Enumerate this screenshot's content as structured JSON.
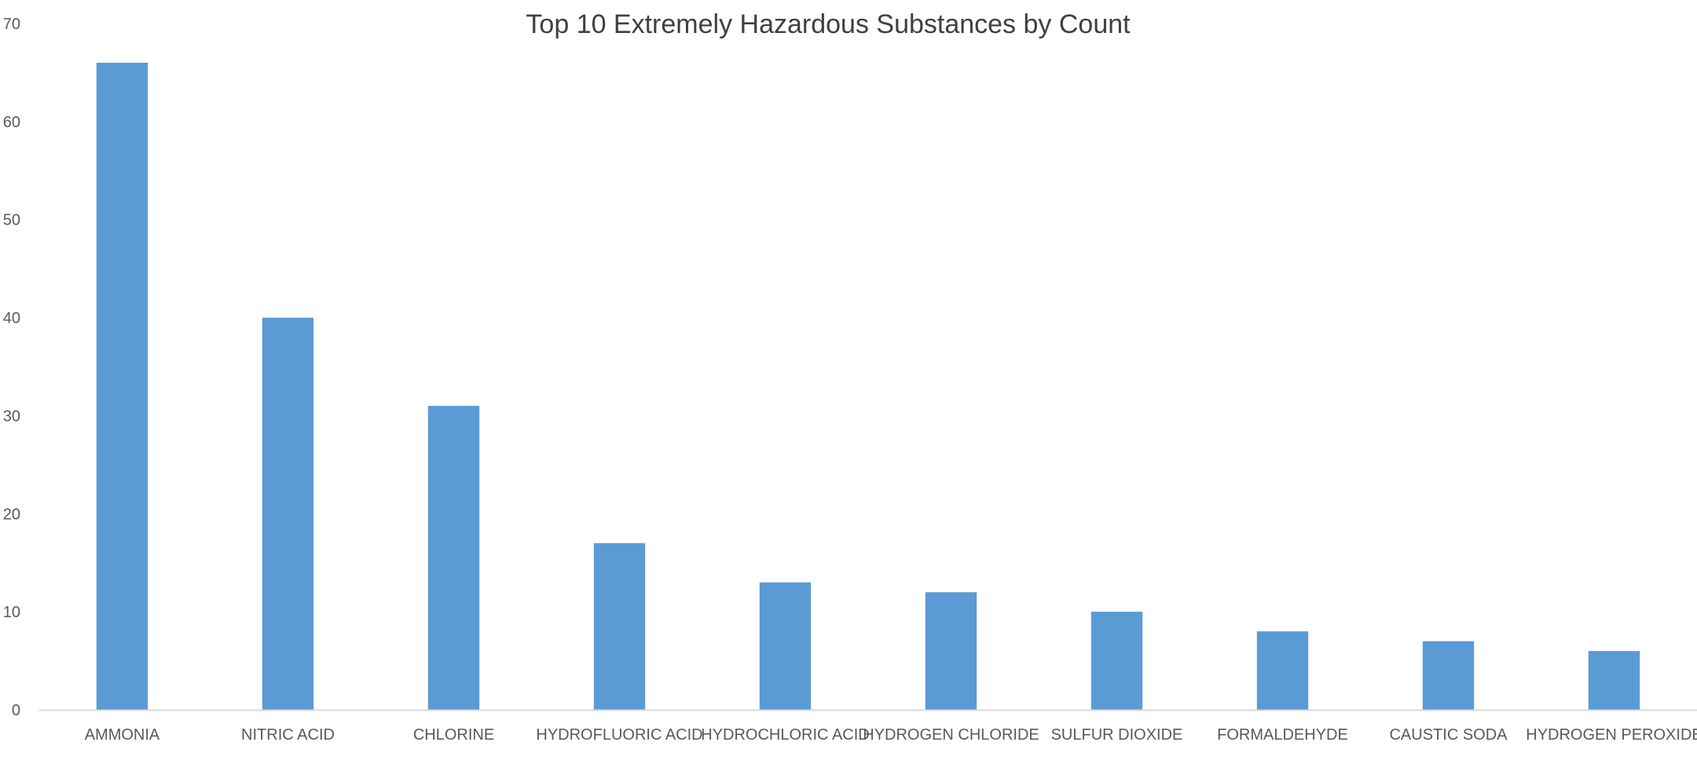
{
  "chart_data": {
    "type": "bar",
    "title": "Top 10 Extremely Hazardous Substances by Count",
    "xlabel": "",
    "ylabel": "",
    "categories": [
      "AMMONIA",
      "NITRIC ACID",
      "CHLORINE",
      "HYDROFLUORIC ACID",
      "HYDROCHLORIC ACID",
      "HYDROGEN CHLORIDE",
      "SULFUR DIOXIDE",
      "FORMALDEHYDE",
      "CAUSTIC SODA",
      "HYDROGEN PEROXIDE"
    ],
    "values": [
      66,
      40,
      31,
      17,
      13,
      12,
      10,
      8,
      7,
      6
    ],
    "ylim": [
      0,
      70
    ],
    "y_ticks": [
      0,
      10,
      20,
      30,
      40,
      50,
      60,
      70
    ],
    "grid": false,
    "legend": "none",
    "colors": {
      "bar": "#5B9BD5",
      "axis": "#D9D9D9",
      "text": "#595959",
      "title": "#404040"
    }
  }
}
